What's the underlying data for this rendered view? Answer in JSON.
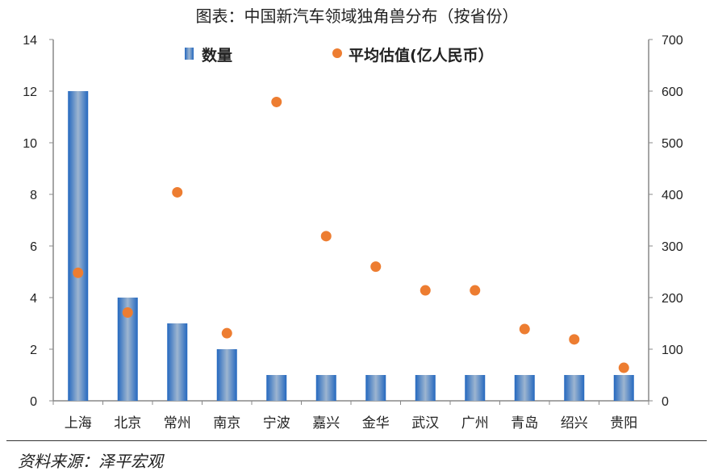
{
  "chart_data": {
    "type": "bar",
    "title": "图表：中国新汽车领域独角兽分布（按省份）",
    "categories": [
      "上海",
      "北京",
      "常州",
      "南京",
      "宁波",
      "嘉兴",
      "金华",
      "武汉",
      "广州",
      "青岛",
      "绍兴",
      "贵阳"
    ],
    "series": [
      {
        "name": "数量",
        "type": "bar",
        "axis": "left",
        "color": "#2E75C6",
        "values": [
          12,
          4,
          3,
          2,
          1,
          1,
          1,
          1,
          1,
          1,
          1,
          1
        ]
      },
      {
        "name": "平均估值(亿人民币）",
        "type": "scatter",
        "axis": "right",
        "color": "#ED7D31",
        "values": [
          248,
          171,
          404,
          131,
          579,
          319,
          260,
          214,
          214,
          139,
          119,
          64
        ]
      }
    ],
    "left_axis": {
      "ylim": [
        0,
        14
      ],
      "ticks": [
        0,
        2,
        4,
        6,
        8,
        10,
        12,
        14
      ]
    },
    "right_axis": {
      "ylim": [
        0,
        700
      ],
      "ticks": [
        0,
        100,
        200,
        300,
        400,
        500,
        600,
        700
      ]
    },
    "grid": false,
    "legend": "top"
  },
  "source": "资料来源：泽平宏观"
}
